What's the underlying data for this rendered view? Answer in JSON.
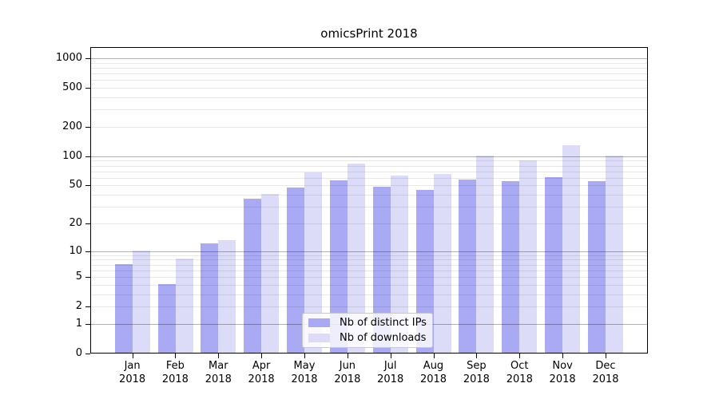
{
  "title": "omicsPrint 2018",
  "chart_data": {
    "type": "bar",
    "title": "omicsPrint 2018",
    "categories": [
      "Jan",
      "Feb",
      "Mar",
      "Apr",
      "May",
      "Jun",
      "Jul",
      "Aug",
      "Sep",
      "Oct",
      "Nov",
      "Dec"
    ],
    "category_year": "2018",
    "series": [
      {
        "name": "Nb of distinct IPs",
        "key": "distinct-ips",
        "color": "#a9a9f4",
        "values": [
          7,
          4,
          12,
          36,
          47,
          56,
          48,
          44,
          57,
          54,
          60,
          54
        ]
      },
      {
        "name": "Nb of downloads",
        "key": "downloads",
        "color": "#dcdcf8",
        "values": [
          10,
          8,
          13,
          40,
          67,
          82,
          62,
          65,
          100,
          89,
          127,
          100
        ]
      }
    ],
    "yscale": "log1p",
    "y_axis_ticks": [
      0,
      1,
      2,
      5,
      10,
      20,
      50,
      100,
      200,
      500,
      1000
    ],
    "ylim": [
      0,
      1275
    ],
    "xlabel": "",
    "ylabel": "",
    "grid": {
      "major_gridline_values": [
        1,
        10,
        100,
        1000
      ],
      "minor_gridlines": "values 2-9 of each decade",
      "drawn_above_bars": true
    },
    "legend_position": "lower-center"
  },
  "colors": {
    "bar_distinct_ips": "#a9a9f4",
    "bar_downloads": "#dcdcf8",
    "major_grid": "rgba(0,0,0,0.30)",
    "minor_grid": "rgba(0,0,0,0.09)",
    "axis_frame": "#000000",
    "background": "#ffffff"
  }
}
